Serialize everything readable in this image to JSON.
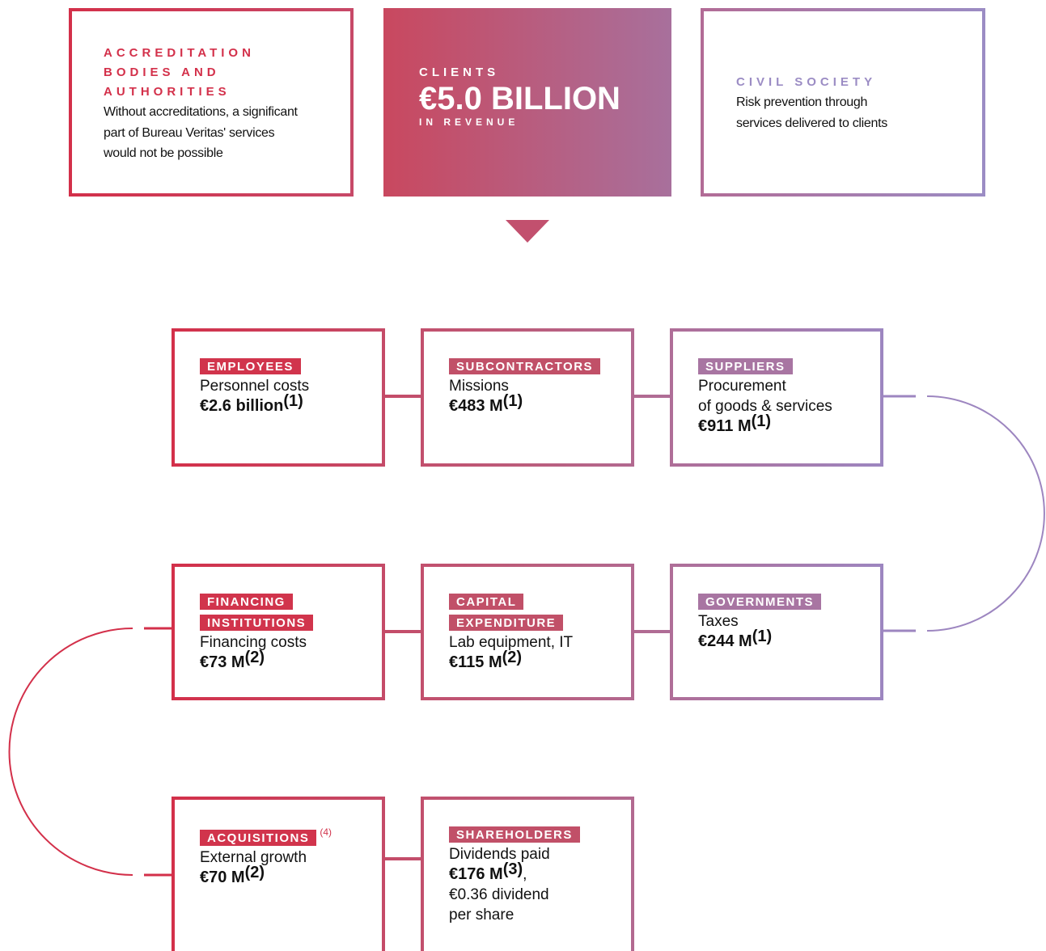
{
  "top": [
    {
      "title": [
        "ACCREDITATION",
        "BODIES AND",
        "AUTHORITIES"
      ],
      "text": [
        "Without accreditations, a significant",
        "part of Bureau Veritas' services",
        "would not be possible"
      ]
    },
    {
      "title": [
        "CLIENTS"
      ],
      "value": "€5.0 BILLION",
      "sub": "IN REVENUE"
    },
    {
      "title": [
        "CIVIL SOCIETY"
      ],
      "text": [
        "Risk prevention through",
        "services delivered to clients"
      ]
    }
  ],
  "boxes": [
    {
      "tag": [
        "EMPLOYEES"
      ],
      "lines": [
        "Personnel costs"
      ],
      "amount": "€2.6 billion",
      "note": "(1)"
    },
    {
      "tag": [
        "SUBCONTRACTORS"
      ],
      "lines": [
        "Missions"
      ],
      "amount": "€483 M",
      "note": "(1)"
    },
    {
      "tag": [
        "SUPPLIERS"
      ],
      "lines": [
        "Procurement",
        "of goods & services"
      ],
      "amount": "€911 M",
      "note": "(1)"
    },
    {
      "tag": [
        "FINANCING",
        "INSTITUTIONS"
      ],
      "lines": [
        "Financing costs"
      ],
      "amount": "€73 M",
      "note": "(2)"
    },
    {
      "tag": [
        "CAPITAL",
        "EXPENDITURE"
      ],
      "lines": [
        "Lab equipment, IT"
      ],
      "amount": "€115 M",
      "note": "(2)"
    },
    {
      "tag": [
        "GOVERNMENTS"
      ],
      "lines": [
        "Taxes"
      ],
      "amount": "€244 M",
      "note": "(1)"
    },
    {
      "tag": [
        "ACQUISITIONS"
      ],
      "tag_note": "(4)",
      "lines": [
        "External growth"
      ],
      "amount": "€70 M",
      "note": "(2)"
    },
    {
      "tag": [
        "SHAREHOLDERS"
      ],
      "lines": [
        "Dividends paid"
      ],
      "amount": "€176 M",
      "note": "(3)",
      "amount_suffix": ",",
      "after": [
        "€0.36 dividend",
        "per share"
      ]
    }
  ]
}
